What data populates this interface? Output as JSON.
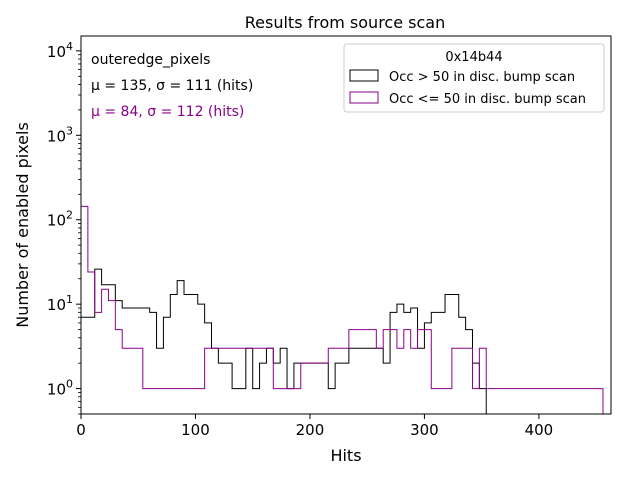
{
  "chart_data": {
    "type": "histogram",
    "title": "Results from source scan",
    "xlabel": "Hits",
    "ylabel": "Number of enabled pixels",
    "xlim": [
      0,
      463
    ],
    "ylim": [
      0.5,
      15000
    ],
    "yscale": "log",
    "grid": false,
    "legend_placement": "top-right",
    "legend_title": "0x14b44",
    "x_ticks": [
      0,
      100,
      200,
      300,
      400
    ],
    "y_ticks": [
      {
        "value": 1,
        "base": "10",
        "exp": "0"
      },
      {
        "value": 10,
        "base": "10",
        "exp": "1"
      },
      {
        "value": 100,
        "base": "10",
        "exp": "2"
      },
      {
        "value": 1000,
        "base": "10",
        "exp": "3"
      },
      {
        "value": 10000,
        "base": "10",
        "exp": "4"
      }
    ],
    "bin_width": 6,
    "annotations": {
      "name": "outeredge_pixels",
      "stats_black": "μ = 135, σ = 111 (hits)",
      "stats_purple": "μ = 84, σ = 112 (hits)"
    },
    "series": [
      {
        "name": "Occ > 50 in disc. bump scan",
        "color": "#000000",
        "bins": [
          [
            0,
            7
          ],
          [
            6,
            7
          ],
          [
            12,
            26
          ],
          [
            18,
            17
          ],
          [
            24,
            17
          ],
          [
            30,
            11
          ],
          [
            36,
            9
          ],
          [
            42,
            9
          ],
          [
            48,
            9
          ],
          [
            54,
            9
          ],
          [
            60,
            8
          ],
          [
            66,
            3
          ],
          [
            72,
            7
          ],
          [
            78,
            13
          ],
          [
            84,
            19
          ],
          [
            90,
            13
          ],
          [
            96,
            13
          ],
          [
            102,
            10
          ],
          [
            108,
            6
          ],
          [
            114,
            3
          ],
          [
            120,
            2
          ],
          [
            126,
            2
          ],
          [
            132,
            1
          ],
          [
            138,
            1
          ],
          [
            144,
            3
          ],
          [
            150,
            1
          ],
          [
            156,
            2
          ],
          [
            162,
            3
          ],
          [
            168,
            2
          ],
          [
            174,
            3
          ],
          [
            180,
            1
          ],
          [
            186,
            2
          ],
          [
            192,
            2
          ],
          [
            198,
            2
          ],
          [
            204,
            2
          ],
          [
            210,
            2
          ],
          [
            216,
            1
          ],
          [
            222,
            2
          ],
          [
            228,
            2
          ],
          [
            234,
            3
          ],
          [
            240,
            3
          ],
          [
            246,
            3
          ],
          [
            252,
            3
          ],
          [
            258,
            3
          ],
          [
            264,
            2
          ],
          [
            270,
            8
          ],
          [
            276,
            10
          ],
          [
            282,
            8
          ],
          [
            288,
            9
          ],
          [
            294,
            3
          ],
          [
            300,
            6
          ],
          [
            306,
            8
          ],
          [
            312,
            8
          ],
          [
            318,
            13
          ],
          [
            324,
            13
          ],
          [
            330,
            7
          ],
          [
            336,
            5
          ],
          [
            342,
            2
          ],
          [
            348,
            1
          ]
        ]
      },
      {
        "name": "Occ <= 50 in disc. bump scan",
        "color": "#8b008b",
        "bins": [
          [
            0,
            144
          ],
          [
            6,
            24
          ],
          [
            12,
            8
          ],
          [
            18,
            15
          ],
          [
            24,
            11
          ],
          [
            30,
            5
          ],
          [
            36,
            3
          ],
          [
            42,
            3
          ],
          [
            48,
            3
          ],
          [
            54,
            1
          ],
          [
            60,
            1
          ],
          [
            66,
            1
          ],
          [
            72,
            1
          ],
          [
            78,
            1
          ],
          [
            84,
            1
          ],
          [
            90,
            1
          ],
          [
            96,
            1
          ],
          [
            102,
            1
          ],
          [
            108,
            3
          ],
          [
            114,
            3
          ],
          [
            120,
            3
          ],
          [
            126,
            3
          ],
          [
            132,
            3
          ],
          [
            138,
            3
          ],
          [
            144,
            3
          ],
          [
            150,
            3
          ],
          [
            156,
            3
          ],
          [
            162,
            3
          ],
          [
            168,
            1
          ],
          [
            174,
            1
          ],
          [
            180,
            1
          ],
          [
            186,
            1
          ],
          [
            192,
            2
          ],
          [
            198,
            2
          ],
          [
            204,
            2
          ],
          [
            210,
            2
          ],
          [
            216,
            3
          ],
          [
            222,
            3
          ],
          [
            228,
            3
          ],
          [
            234,
            5
          ],
          [
            240,
            5
          ],
          [
            246,
            5
          ],
          [
            252,
            5
          ],
          [
            258,
            3
          ],
          [
            264,
            5
          ],
          [
            270,
            5
          ],
          [
            276,
            3
          ],
          [
            282,
            5
          ],
          [
            288,
            3
          ],
          [
            294,
            5
          ],
          [
            300,
            5
          ],
          [
            306,
            1
          ],
          [
            312,
            1
          ],
          [
            318,
            1
          ],
          [
            324,
            3
          ],
          [
            330,
            3
          ],
          [
            336,
            3
          ],
          [
            342,
            1
          ],
          [
            348,
            3
          ],
          [
            354,
            1
          ],
          [
            360,
            1
          ],
          [
            366,
            1
          ],
          [
            372,
            1
          ],
          [
            378,
            1
          ],
          [
            384,
            1
          ],
          [
            390,
            1
          ],
          [
            396,
            1
          ],
          [
            402,
            1
          ],
          [
            408,
            1
          ],
          [
            414,
            1
          ],
          [
            420,
            1
          ],
          [
            426,
            1
          ],
          [
            432,
            1
          ],
          [
            438,
            1
          ],
          [
            444,
            1
          ],
          [
            450,
            1
          ]
        ]
      }
    ]
  }
}
